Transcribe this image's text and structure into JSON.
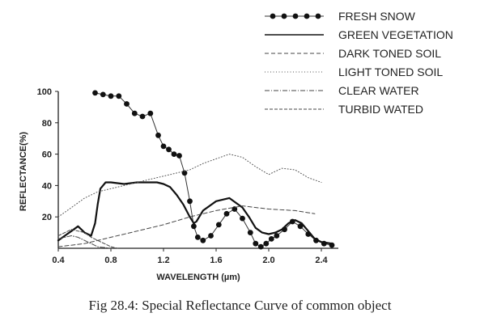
{
  "caption": "Fig 28.4: Special Reflectance Curve of common object",
  "chart_data": {
    "type": "line",
    "title": "",
    "xlabel": "WAVELENGTH (µm)",
    "ylabel": "REFLECTANCE(%)",
    "xlim": [
      0.4,
      2.6
    ],
    "ylim": [
      0,
      100
    ],
    "x_ticks": [
      "0.4",
      "0.8",
      "1.2",
      "1.6",
      "2.0",
      "2.4"
    ],
    "y_ticks": [
      "20",
      "40",
      "60",
      "80",
      "100"
    ],
    "grid": false,
    "legend_position": "top-right",
    "series": [
      {
        "name": "FRESH SNOW",
        "style": "dotted-markers",
        "x": [
          0.68,
          0.74,
          0.8,
          0.86,
          0.92,
          0.98,
          1.04,
          1.1,
          1.16,
          1.2,
          1.24,
          1.28,
          1.32,
          1.36,
          1.4,
          1.43,
          1.46,
          1.5,
          1.56,
          1.62,
          1.68,
          1.74,
          1.8,
          1.86,
          1.9,
          1.94,
          1.98,
          2.02,
          2.06,
          2.12,
          2.18,
          2.24,
          2.3,
          2.36,
          2.42,
          2.48
        ],
        "y": [
          99,
          98,
          97,
          97,
          92,
          86,
          84,
          86,
          72,
          65,
          63,
          60,
          59,
          48,
          30,
          14,
          7,
          5,
          8,
          15,
          22,
          25,
          19,
          10,
          3,
          1,
          3,
          6,
          8,
          12,
          17,
          14,
          9,
          5,
          3,
          2
        ]
      },
      {
        "name": "GREEN VEGETATION",
        "style": "solid",
        "x": [
          0.4,
          0.45,
          0.5,
          0.55,
          0.6,
          0.65,
          0.68,
          0.7,
          0.72,
          0.76,
          0.8,
          0.9,
          1.0,
          1.1,
          1.15,
          1.2,
          1.25,
          1.3,
          1.35,
          1.4,
          1.43,
          1.45,
          1.5,
          1.6,
          1.7,
          1.8,
          1.85,
          1.9,
          1.95,
          2.0,
          2.05,
          2.1,
          2.15,
          2.2,
          2.25,
          2.3,
          2.35,
          2.4,
          2.48
        ],
        "y": [
          5,
          8,
          11,
          14,
          10,
          8,
          16,
          28,
          38,
          42,
          42,
          41,
          42,
          42,
          42,
          41,
          39,
          34,
          28,
          20,
          16,
          17,
          24,
          30,
          32,
          26,
          20,
          13,
          10,
          9,
          10,
          12,
          16,
          18,
          16,
          11,
          6,
          4,
          3
        ]
      },
      {
        "name": "DARK TONED SOIL",
        "style": "dashed",
        "x": [
          0.4,
          0.6,
          0.8,
          1.0,
          1.2,
          1.4,
          1.6,
          1.8,
          2.0,
          2.2,
          2.35
        ],
        "y": [
          1,
          3,
          7,
          11,
          15,
          20,
          24,
          27,
          25,
          24,
          22
        ]
      },
      {
        "name": "LIGHT TONED SOIL",
        "style": "dotted",
        "x": [
          0.4,
          0.5,
          0.6,
          0.7,
          0.8,
          0.9,
          1.0,
          1.1,
          1.2,
          1.3,
          1.4,
          1.5,
          1.6,
          1.7,
          1.8,
          1.9,
          2.0,
          2.1,
          2.2,
          2.3,
          2.4
        ],
        "y": [
          20,
          26,
          32,
          36,
          38,
          40,
          42,
          44,
          46,
          48,
          50,
          54,
          57,
          60,
          58,
          52,
          47,
          51,
          50,
          45,
          42
        ]
      },
      {
        "name": "CLEAR WATER",
        "style": "dash-dot",
        "x": [
          0.4,
          0.45,
          0.5,
          0.55,
          0.6,
          0.65,
          0.7,
          0.8
        ],
        "y": [
          6,
          7,
          8,
          7,
          5,
          3,
          1,
          0
        ]
      },
      {
        "name": "TURBID WATED",
        "style": "short-dash",
        "x": [
          0.4,
          0.45,
          0.5,
          0.55,
          0.6,
          0.65,
          0.7,
          0.75,
          0.8,
          0.85
        ],
        "y": [
          8,
          10,
          12,
          11,
          10,
          7,
          5,
          3,
          1,
          0
        ]
      }
    ]
  }
}
